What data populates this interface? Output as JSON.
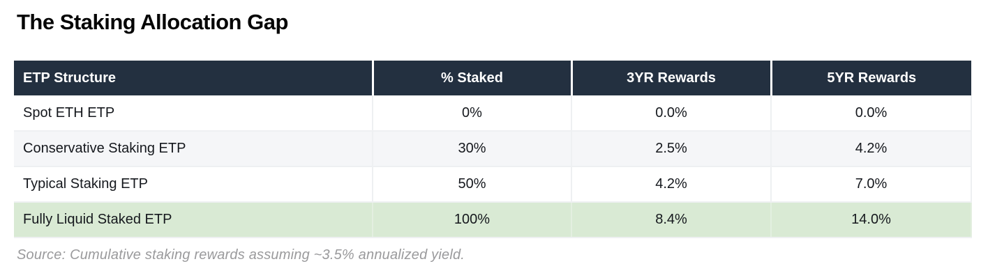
{
  "title": "The Staking Allocation Gap",
  "table": {
    "columns": [
      "ETP Structure",
      "% Staked",
      "3YR Rewards",
      "5YR Rewards"
    ],
    "rows": [
      {
        "structure": "Spot ETH ETP",
        "staked": "0%",
        "rewards_3yr": "0.0%",
        "rewards_5yr": "0.0%",
        "highlighted": false
      },
      {
        "structure": "Conservative Staking ETP",
        "staked": "30%",
        "rewards_3yr": "2.5%",
        "rewards_5yr": "4.2%",
        "highlighted": false
      },
      {
        "structure": "Typical Staking ETP",
        "staked": "50%",
        "rewards_3yr": "4.2%",
        "rewards_5yr": "7.0%",
        "highlighted": false
      },
      {
        "structure": "Fully Liquid Staked ETP",
        "staked": "100%",
        "rewards_3yr": "8.4%",
        "rewards_5yr": "14.0%",
        "highlighted": true
      }
    ]
  },
  "source_note": "Source: Cumulative staking rewards assuming ~3.5% annualized yield.",
  "colors": {
    "header_bg": "#233040",
    "header_text": "#ffffff",
    "row_bg": "#ffffff",
    "row_alt_bg": "#f5f6f8",
    "highlight_bg": "#d9ead4",
    "divider": "#eef0f2",
    "title_text": "#050505",
    "body_text": "#15181d",
    "source_text": "#9a9a9c"
  },
  "chart_data": {
    "type": "table",
    "title": "The Staking Allocation Gap",
    "columns": [
      "ETP Structure",
      "% Staked",
      "3YR Rewards",
      "5YR Rewards"
    ],
    "rows": [
      [
        "Spot ETH ETP",
        "0%",
        "0.0%",
        "0.0%"
      ],
      [
        "Conservative Staking ETP",
        "30%",
        "2.5%",
        "4.2%"
      ],
      [
        "Typical Staking ETP",
        "50%",
        "4.2%",
        "7.0%"
      ],
      [
        "Fully Liquid Staked ETP",
        "100%",
        "8.4%",
        "14.0%"
      ]
    ],
    "numeric_series": [
      {
        "name": "% Staked",
        "values": [
          0,
          30,
          50,
          100
        ]
      },
      {
        "name": "3YR Rewards",
        "values": [
          0.0,
          2.5,
          4.2,
          8.4
        ]
      },
      {
        "name": "5YR Rewards",
        "values": [
          0.0,
          4.2,
          7.0,
          14.0
        ]
      }
    ],
    "highlighted_row": "Fully Liquid Staked ETP",
    "annotations": [
      "Source: Cumulative staking rewards assuming ~3.5% annualized yield."
    ]
  }
}
